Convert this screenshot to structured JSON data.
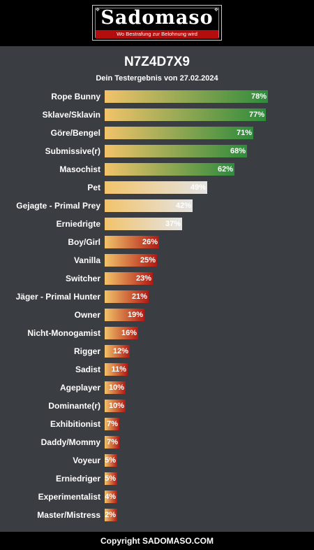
{
  "header": {
    "logo_text": "Sadomaso",
    "logo_tagline": "Wo Bestrafung zur Belohnung wird"
  },
  "result": {
    "title": "N7Z4D7X9",
    "subtitle": "Dein Testergebnis von 27.02.2024"
  },
  "colors": {
    "green_scheme": [
      "#f2c36a",
      "#2e8b3c"
    ],
    "light_scheme": [
      "#f2c36a",
      "#e4e4e4"
    ],
    "red_scheme": [
      "#f2c36a",
      "#b01a14"
    ],
    "background": "#3a3d42"
  },
  "chart_data": {
    "type": "bar",
    "orientation": "horizontal",
    "categories": [
      "Rope Bunny",
      "Sklave/Sklavin",
      "Göre/Bengel",
      "Submissive(r)",
      "Masochist",
      "Pet",
      "Gejagte - Primal Prey",
      "Erniedrigte",
      "Boy/Girl",
      "Vanilla",
      "Switcher",
      "Jäger - Primal Hunter",
      "Owner",
      "Nicht-Monogamist",
      "Rigger",
      "Sadist",
      "Ageplayer",
      "Dominante(r)",
      "Exhibitionist",
      "Daddy/Mommy",
      "Voyeur",
      "Erniedriger",
      "Experimentalist",
      "Master/Mistress"
    ],
    "values": [
      78,
      77,
      71,
      68,
      62,
      49,
      42,
      37,
      26,
      25,
      23,
      21,
      19,
      16,
      12,
      11,
      10,
      10,
      7,
      7,
      5,
      5,
      4,
      2
    ],
    "value_labels": [
      "78%",
      "77%",
      "71%",
      "68%",
      "62%",
      "49%",
      "42%",
      "37%",
      "26%",
      "25%",
      "23%",
      "21%",
      "19%",
      "16%",
      "12%",
      "11%",
      "10%",
      "10%",
      "7%",
      "7%",
      "5%",
      "5%",
      "4%",
      "2%"
    ],
    "xlim": [
      0,
      100
    ],
    "color_groups": [
      "green",
      "green",
      "green",
      "green",
      "green",
      "light",
      "light",
      "light",
      "red",
      "red",
      "red",
      "red",
      "red",
      "red",
      "red",
      "red",
      "red",
      "red",
      "red",
      "red",
      "red",
      "red",
      "red",
      "red"
    ]
  },
  "footer": {
    "copyright": "Copyright SADOMASO.COM"
  }
}
